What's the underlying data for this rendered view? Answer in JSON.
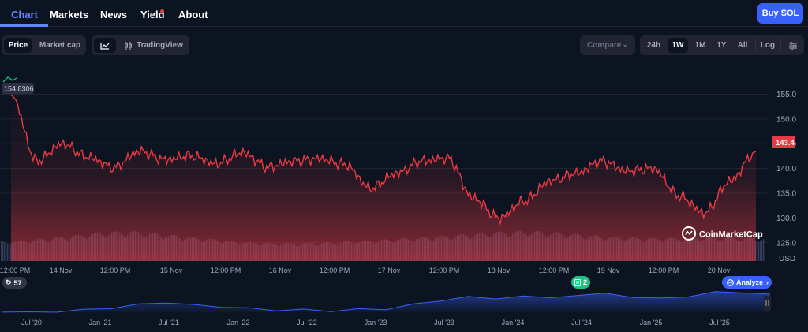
{
  "nav": {
    "tabs": [
      {
        "label": "Chart",
        "name": "tab-chart"
      },
      {
        "label": "Markets",
        "name": "tab-markets"
      },
      {
        "label": "News",
        "name": "tab-news"
      },
      {
        "label": "Yield",
        "name": "tab-yield"
      },
      {
        "label": "About",
        "name": "tab-about"
      }
    ],
    "buy_label": "Buy SOL"
  },
  "toolbar": {
    "price_label": "Price",
    "marketcap_label": "Market cap",
    "tradingview_label": "TradingView",
    "compare_label": "Compare",
    "ranges": [
      "24h",
      "1W",
      "1M",
      "1Y",
      "All"
    ],
    "active_range": "1W",
    "log_label": "Log"
  },
  "colors": {
    "line": "#ea3943",
    "volume": "#323c5a",
    "navigator": "#3861fb",
    "accent": "#6188ff",
    "green": "#16c784"
  },
  "chart_data": {
    "type": "line",
    "ylabel": "USD",
    "yticks": [
      125,
      130,
      135,
      140,
      145,
      150,
      155
    ],
    "ylim": [
      121.3,
      159.7
    ],
    "start_value": 154.8306,
    "current_value": 143.4,
    "xticks": [
      "12:00 PM",
      "14 Nov",
      "12:00 PM",
      "15 Nov",
      "12:00 PM",
      "16 Nov",
      "12:00 PM",
      "17 Nov",
      "12:00 PM",
      "18 Nov",
      "12:00 PM",
      "19 Nov",
      "12:00 PM",
      "20 Nov"
    ],
    "x": [
      "13 Nov 12:00",
      "13 Nov 18:00",
      "14 Nov 00:00",
      "14 Nov 06:00",
      "14 Nov 12:00",
      "14 Nov 18:00",
      "15 Nov 00:00",
      "15 Nov 06:00",
      "15 Nov 12:00",
      "15 Nov 18:00",
      "16 Nov 00:00",
      "16 Nov 06:00",
      "16 Nov 12:00",
      "16 Nov 18:00",
      "17 Nov 00:00",
      "17 Nov 06:00",
      "17 Nov 12:00",
      "17 Nov 18:00",
      "18 Nov 00:00",
      "18 Nov 06:00",
      "18 Nov 12:00",
      "18 Nov 18:00",
      "19 Nov 00:00",
      "19 Nov 06:00",
      "19 Nov 12:00",
      "19 Nov 18:00",
      "20 Nov 00:00",
      "20 Nov 06:00",
      "20 Nov 12:00",
      "20 Nov 16:00"
    ],
    "values": [
      154.8,
      141.5,
      145.0,
      142.3,
      140.2,
      143.5,
      141.8,
      142.6,
      141.0,
      143.2,
      140.3,
      141.5,
      142.0,
      140.8,
      136.0,
      139.0,
      141.5,
      142.1,
      134.0,
      130.0,
      133.5,
      137.5,
      139.0,
      141.5,
      139.5,
      140.0,
      134.5,
      131.0,
      137.5,
      143.4
    ],
    "volume_profile": [
      0.55,
      0.6,
      0.7,
      0.8,
      0.9,
      0.95,
      0.85,
      0.75,
      0.65,
      0.55,
      0.5,
      0.48,
      0.5,
      0.55,
      0.6,
      0.65,
      0.7,
      0.78,
      0.85,
      0.92,
      0.95,
      0.9,
      0.82,
      0.74,
      0.7,
      0.68,
      0.7,
      0.72,
      0.7,
      0.68
    ]
  },
  "watermark": "CoinMarketCap",
  "badges": {
    "events_count": "57",
    "docs_count": "2",
    "analyze_label": "Analyze"
  },
  "navigator": {
    "labels": [
      "Jul '20",
      "Jan '21",
      "Jul '21",
      "Jan '22",
      "Jul '22",
      "Jan '23",
      "Jul '23",
      "Jan '24",
      "Jul '24",
      "Jan '25",
      "Jul '25"
    ],
    "values": [
      0.5,
      1,
      2,
      15,
      25,
      45,
      60,
      40,
      35,
      20,
      15,
      12,
      10,
      15,
      20,
      45,
      70,
      90,
      80,
      95,
      85,
      100,
      110,
      90,
      80,
      95,
      115,
      120,
      100
    ]
  }
}
